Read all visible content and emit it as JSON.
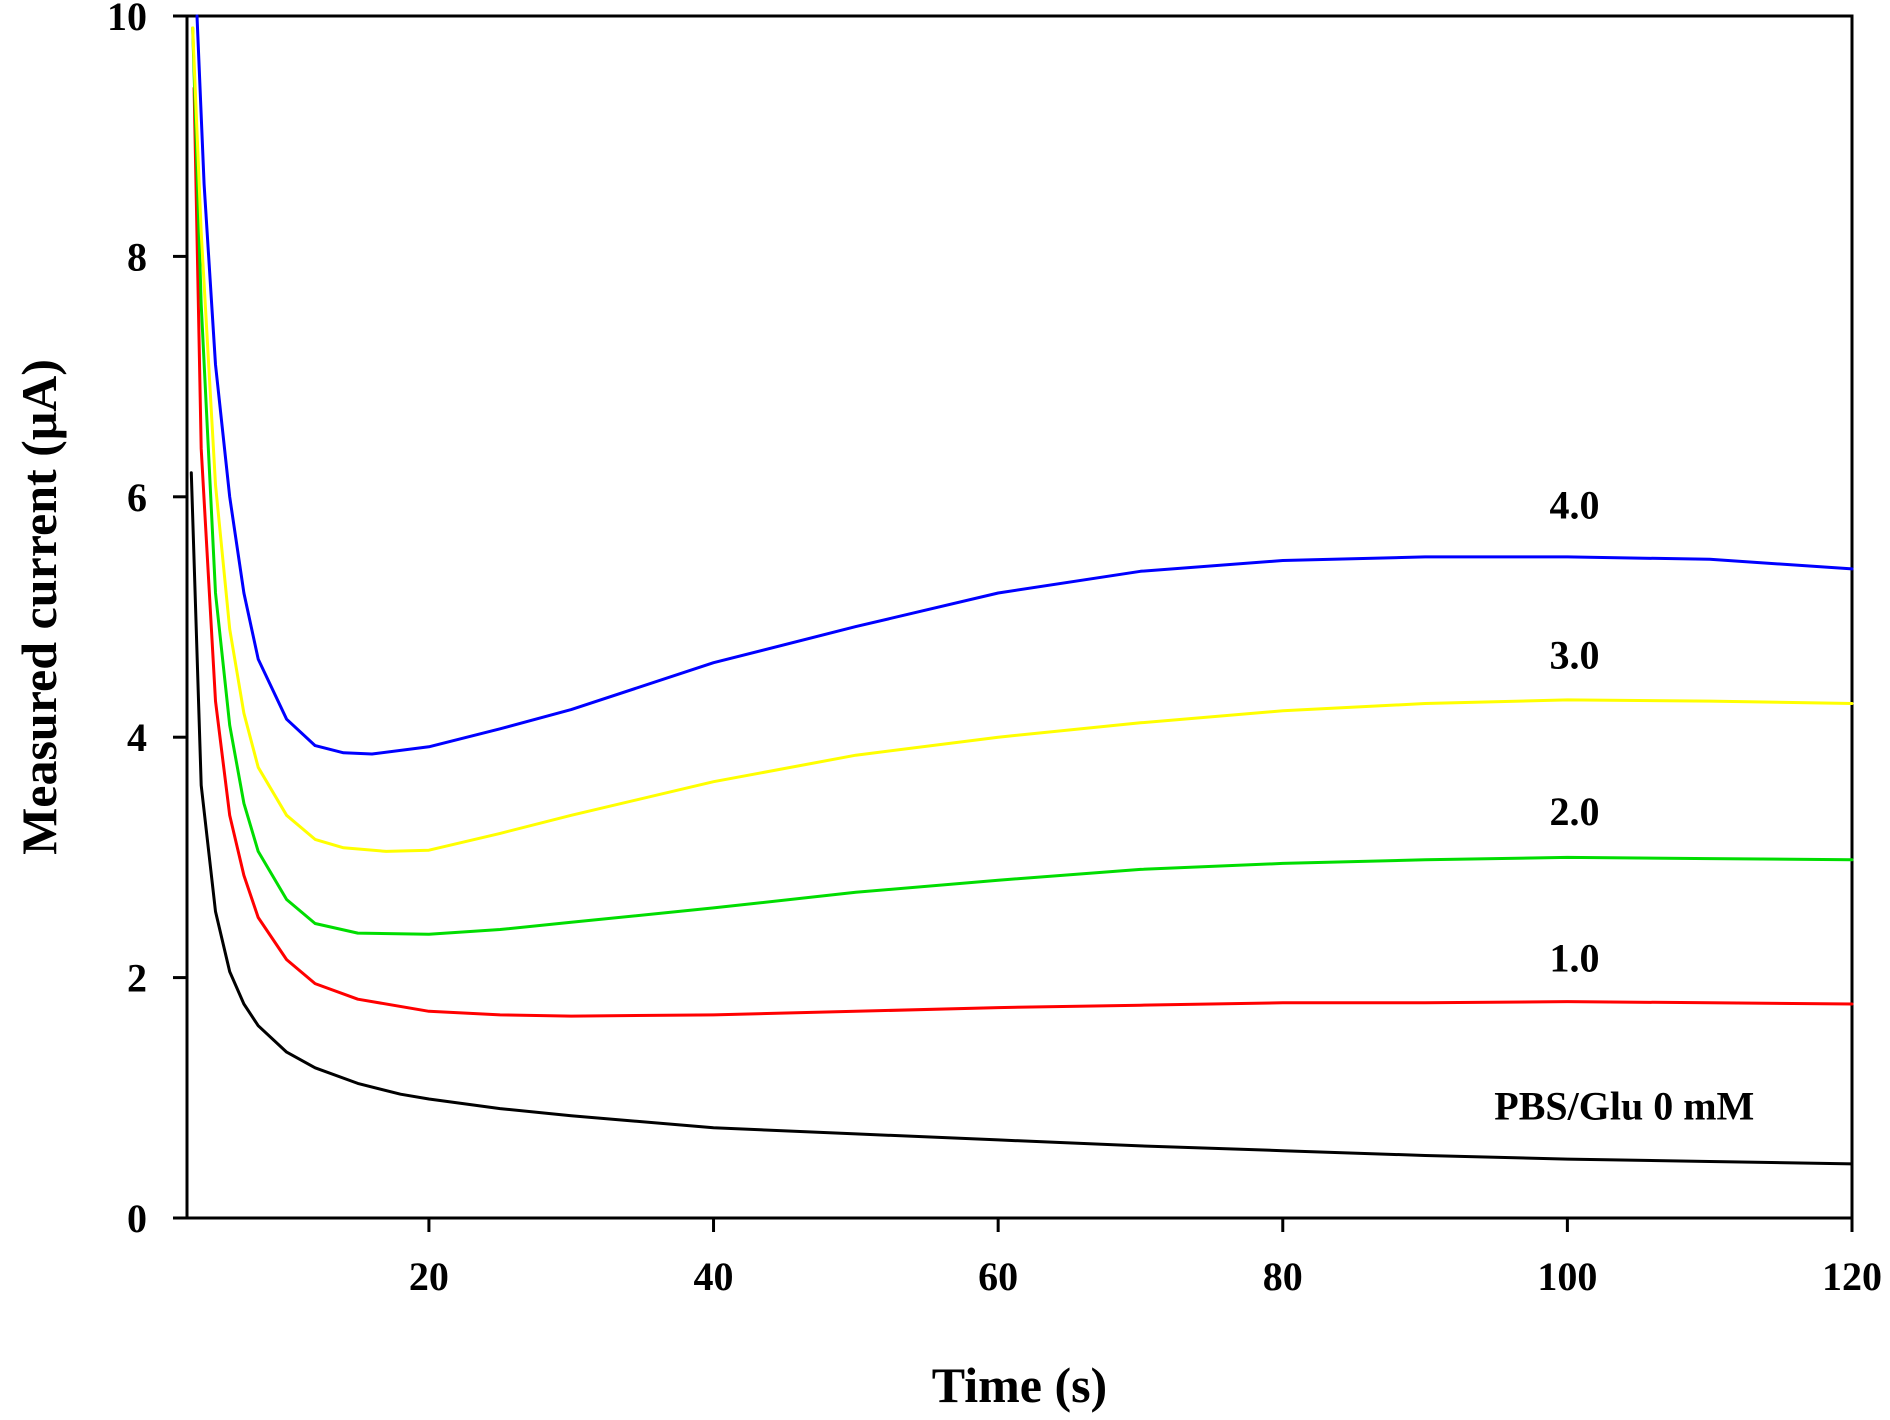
{
  "chart_data": {
    "type": "line",
    "title": "",
    "xlabel": "Time (s)",
    "ylabel": "Measured current (μA)",
    "xlim": [
      3,
      120
    ],
    "ylim": [
      0,
      10
    ],
    "xticks": [
      20,
      40,
      60,
      80,
      100,
      120
    ],
    "yticks": [
      0,
      2,
      4,
      6,
      8,
      10
    ],
    "grid": false,
    "legend": "inline labels at right",
    "series": [
      {
        "name": "PBS/Glu 0 mM",
        "color": "#000000",
        "points": [
          [
            3.3,
            6.2
          ],
          [
            4,
            3.6
          ],
          [
            5,
            2.55
          ],
          [
            6,
            2.05
          ],
          [
            7,
            1.78
          ],
          [
            8,
            1.6
          ],
          [
            10,
            1.38
          ],
          [
            12,
            1.25
          ],
          [
            15,
            1.12
          ],
          [
            18,
            1.03
          ],
          [
            20,
            0.99
          ],
          [
            25,
            0.91
          ],
          [
            30,
            0.85
          ],
          [
            40,
            0.75
          ],
          [
            50,
            0.7
          ],
          [
            60,
            0.65
          ],
          [
            70,
            0.6
          ],
          [
            80,
            0.56
          ],
          [
            90,
            0.52
          ],
          [
            100,
            0.49
          ],
          [
            110,
            0.47
          ],
          [
            120,
            0.45
          ]
        ]
      },
      {
        "name": "1.0",
        "color": "#ff0000",
        "points": [
          [
            3.5,
            9.4
          ],
          [
            4,
            6.4
          ],
          [
            5,
            4.3
          ],
          [
            6,
            3.35
          ],
          [
            7,
            2.85
          ],
          [
            8,
            2.5
          ],
          [
            10,
            2.15
          ],
          [
            12,
            1.95
          ],
          [
            15,
            1.82
          ],
          [
            20,
            1.72
          ],
          [
            25,
            1.69
          ],
          [
            30,
            1.68
          ],
          [
            40,
            1.69
          ],
          [
            50,
            1.72
          ],
          [
            60,
            1.75
          ],
          [
            70,
            1.77
          ],
          [
            80,
            1.79
          ],
          [
            90,
            1.79
          ],
          [
            100,
            1.8
          ],
          [
            110,
            1.79
          ],
          [
            120,
            1.78
          ]
        ]
      },
      {
        "name": "2.0",
        "color": "#00dd00",
        "points": [
          [
            3.4,
            9.9
          ],
          [
            4,
            7.6
          ],
          [
            5,
            5.2
          ],
          [
            6,
            4.1
          ],
          [
            7,
            3.45
          ],
          [
            8,
            3.05
          ],
          [
            10,
            2.65
          ],
          [
            12,
            2.45
          ],
          [
            15,
            2.37
          ],
          [
            20,
            2.36
          ],
          [
            25,
            2.4
          ],
          [
            30,
            2.46
          ],
          [
            40,
            2.58
          ],
          [
            50,
            2.71
          ],
          [
            60,
            2.81
          ],
          [
            70,
            2.9
          ],
          [
            80,
            2.95
          ],
          [
            90,
            2.98
          ],
          [
            100,
            3.0
          ],
          [
            110,
            2.99
          ],
          [
            120,
            2.98
          ]
        ]
      },
      {
        "name": "3.0",
        "color": "#ffff00",
        "points": [
          [
            3.4,
            9.9
          ],
          [
            4,
            8.2
          ],
          [
            5,
            6.1
          ],
          [
            6,
            4.9
          ],
          [
            7,
            4.2
          ],
          [
            8,
            3.75
          ],
          [
            10,
            3.35
          ],
          [
            12,
            3.15
          ],
          [
            14,
            3.08
          ],
          [
            17,
            3.05
          ],
          [
            20,
            3.06
          ],
          [
            25,
            3.2
          ],
          [
            30,
            3.35
          ],
          [
            40,
            3.63
          ],
          [
            50,
            3.85
          ],
          [
            60,
            4.0
          ],
          [
            70,
            4.12
          ],
          [
            80,
            4.22
          ],
          [
            90,
            4.28
          ],
          [
            100,
            4.31
          ],
          [
            110,
            4.3
          ],
          [
            120,
            4.28
          ]
        ]
      },
      {
        "name": "4.0",
        "color": "#0000ff",
        "points": [
          [
            3.7,
            10.0
          ],
          [
            4.2,
            8.6
          ],
          [
            5,
            7.1
          ],
          [
            6,
            6.0
          ],
          [
            7,
            5.2
          ],
          [
            8,
            4.65
          ],
          [
            10,
            4.15
          ],
          [
            12,
            3.93
          ],
          [
            14,
            3.87
          ],
          [
            16,
            3.86
          ],
          [
            20,
            3.92
          ],
          [
            25,
            4.07
          ],
          [
            30,
            4.23
          ],
          [
            40,
            4.62
          ],
          [
            50,
            4.92
          ],
          [
            60,
            5.2
          ],
          [
            70,
            5.38
          ],
          [
            80,
            5.47
          ],
          [
            90,
            5.5
          ],
          [
            100,
            5.5
          ],
          [
            110,
            5.48
          ],
          [
            120,
            5.4
          ]
        ]
      }
    ],
    "annotations": [
      {
        "text": "4.0",
        "x": 100.5,
        "y": 5.82,
        "series": 4
      },
      {
        "text": "3.0",
        "x": 100.5,
        "y": 4.57,
        "series": 3
      },
      {
        "text": "2.0",
        "x": 100.5,
        "y": 3.27,
        "series": 2
      },
      {
        "text": "1.0",
        "x": 100.5,
        "y": 2.05,
        "series": 1
      },
      {
        "text": "PBS/Glu 0 mM",
        "x": 104,
        "y": 0.82,
        "series": 0
      }
    ]
  }
}
